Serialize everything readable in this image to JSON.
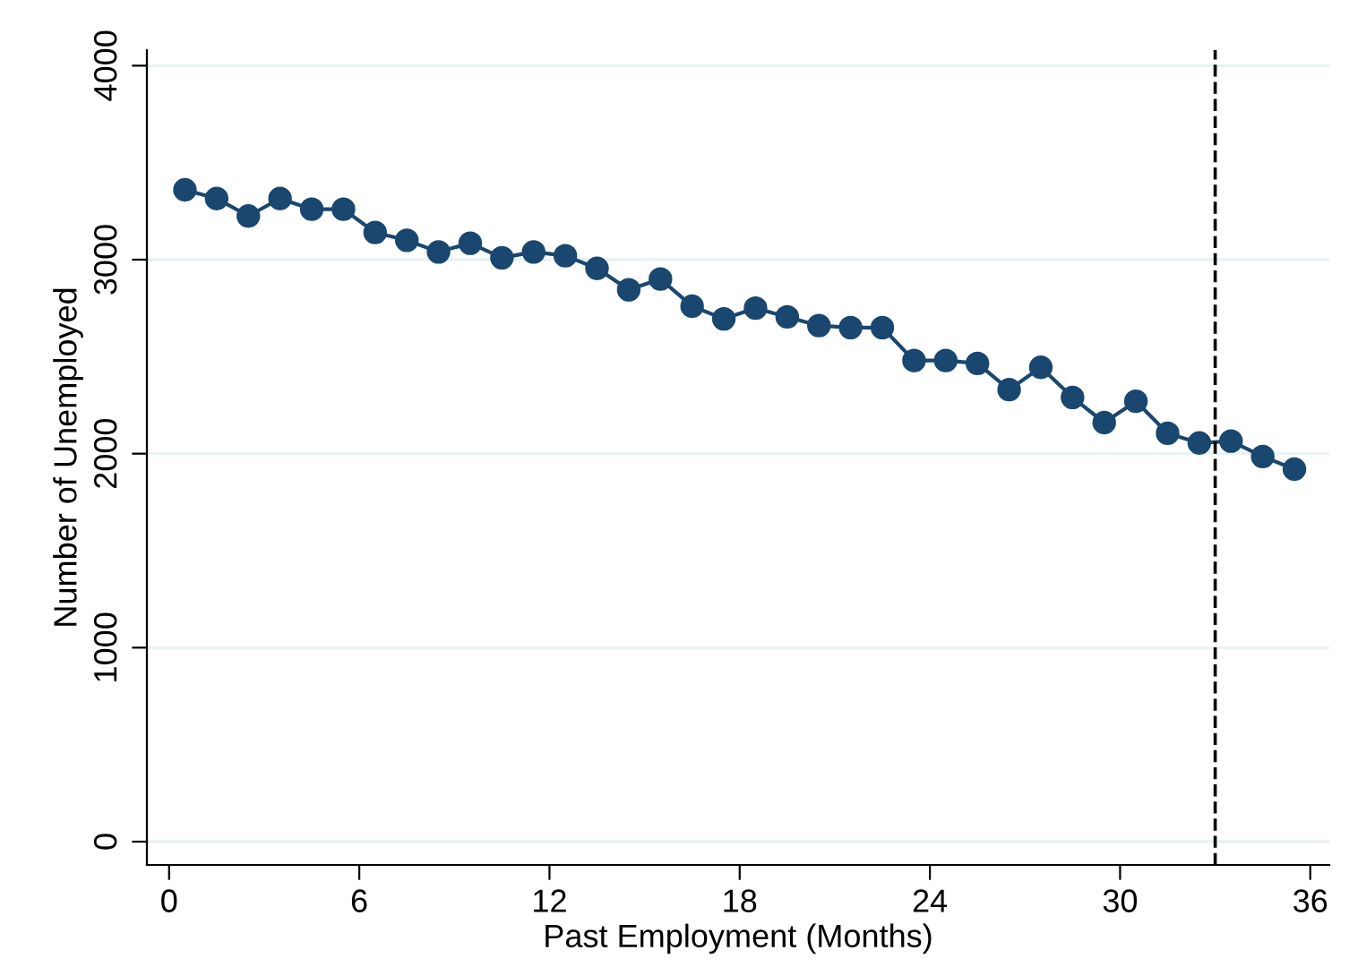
{
  "chart_data": {
    "type": "line",
    "xlabel": "Past Employment (Months)",
    "ylabel": "Number of Unemployed",
    "x": [
      0.5,
      1.5,
      2.5,
      3.5,
      4.5,
      5.5,
      6.5,
      7.5,
      8.5,
      9.5,
      10.5,
      11.5,
      12.5,
      13.5,
      14.5,
      15.5,
      16.5,
      17.5,
      18.5,
      19.5,
      20.5,
      21.5,
      22.5,
      23.5,
      24.5,
      25.5,
      26.5,
      27.5,
      28.5,
      29.5,
      30.5,
      31.5,
      32.5,
      33.5,
      34.5,
      35.5
    ],
    "series": [
      {
        "color": "#1a476f",
        "values": [
          3360,
          3315,
          3225,
          3315,
          3260,
          3260,
          3140,
          3100,
          3040,
          3085,
          3010,
          3040,
          3020,
          2955,
          2845,
          2900,
          2760,
          2695,
          2750,
          2705,
          2660,
          2650,
          2650,
          2480,
          2480,
          2465,
          2330,
          2445,
          2290,
          2160,
          2270,
          2105,
          2055,
          2065,
          1985,
          1920
        ]
      }
    ],
    "xlim": [
      -0.7,
      36.6
    ],
    "xticks": [
      0,
      6,
      12,
      18,
      24,
      30,
      36
    ],
    "ylim": [
      -120,
      4080
    ],
    "yticks": [
      0,
      1000,
      2000,
      3000,
      4000
    ],
    "grid": "y",
    "marker": "circle",
    "line_style": "solid",
    "ref_lines": [
      {
        "axis": "x",
        "value": 33,
        "color": "#000000",
        "line_style": "dashed"
      }
    ]
  }
}
